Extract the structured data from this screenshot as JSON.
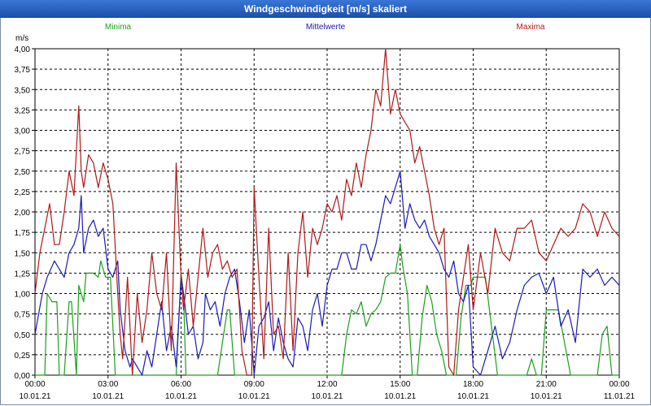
{
  "window": {
    "title": "Windgeschwindigkeit [m/s] skaliert"
  },
  "chart_data": {
    "type": "line",
    "title": "Windgeschwindigkeit [m/s] skaliert",
    "ylabel": "m/s",
    "xlabel": "",
    "ylim": [
      0,
      4
    ],
    "xlim_hours": [
      0,
      24
    ],
    "grid": true,
    "yticks": [
      "0,00",
      "0,25",
      "0,50",
      "0,75",
      "1,00",
      "1,25",
      "1,50",
      "1,75",
      "2,00",
      "2,25",
      "2,50",
      "2,75",
      "3,00",
      "3,25",
      "3,50",
      "3,75",
      "4,00"
    ],
    "xticks": [
      {
        "time": "00:00",
        "date": "10.01.21"
      },
      {
        "time": "03:00",
        "date": "10.01.21"
      },
      {
        "time": "06:00",
        "date": "10.01.21"
      },
      {
        "time": "09:00",
        "date": "10.01.21"
      },
      {
        "time": "12:00",
        "date": "10.01.21"
      },
      {
        "time": "15:00",
        "date": "10.01.21"
      },
      {
        "time": "18:00",
        "date": "10.01.21"
      },
      {
        "time": "21:00",
        "date": "10.01.21"
      },
      {
        "time": "00:00",
        "date": "11.01.21"
      }
    ],
    "series": [
      {
        "name": "Minima",
        "color": "#1aa01a",
        "x": [
          0,
          0.4,
          0.5,
          0.7,
          0.9,
          1.0,
          1.2,
          1.4,
          1.5,
          1.7,
          1.8,
          2.0,
          2.1,
          2.2,
          2.4,
          2.6,
          2.7,
          2.9,
          3.1,
          3.3,
          3.4,
          3.5,
          3.7,
          3.9,
          4.1,
          4.5,
          5.0,
          5.5,
          5.8,
          6.0,
          6.1,
          6.2,
          6.4,
          6.6,
          7.0,
          7.5,
          7.9,
          8.0,
          8.2,
          8.4,
          8.6,
          8.8,
          9.0,
          9.5,
          10.0,
          10.5,
          11.0,
          11.5,
          12.0,
          12.4,
          12.6,
          12.8,
          13.0,
          13.2,
          13.4,
          13.6,
          13.8,
          14.0,
          14.2,
          14.4,
          14.6,
          14.8,
          15.0,
          15.1,
          15.3,
          15.5,
          15.7,
          15.9,
          16.1,
          16.3,
          16.5,
          16.7,
          16.9,
          17.1,
          17.3,
          17.5,
          17.7,
          17.9,
          18.0,
          18.5,
          19.0,
          19.5,
          20.0,
          20.2,
          20.4,
          20.6,
          20.8,
          21.0,
          21.5,
          22.0,
          22.4,
          22.6,
          22.8,
          23.0,
          23.1,
          23.3,
          23.5,
          23.7,
          24.0
        ],
        "values": [
          0,
          0,
          1.0,
          0.9,
          0.9,
          0,
          0,
          0.9,
          0.9,
          0,
          1.1,
          0.9,
          1.25,
          1.25,
          1.25,
          1.2,
          1.4,
          1.2,
          1.2,
          0,
          0,
          0,
          0,
          0,
          0,
          0,
          0,
          0,
          0,
          1.25,
          1.0,
          0,
          0,
          0,
          0,
          0,
          0.8,
          0.8,
          0,
          0,
          0,
          0,
          0,
          0,
          0,
          0,
          0,
          0,
          0,
          0,
          0,
          0.5,
          0.8,
          0.75,
          0.9,
          0.6,
          0.75,
          0.8,
          0.9,
          1.2,
          1.25,
          1.25,
          1.6,
          1.35,
          1.0,
          0,
          0,
          0.7,
          1.1,
          0.9,
          0.5,
          0.3,
          0,
          0,
          0,
          0.7,
          1.1,
          1.1,
          1.2,
          1.2,
          0,
          0,
          0,
          0,
          0.2,
          0,
          0,
          0.8,
          0.8,
          0,
          0,
          0,
          0,
          0,
          0,
          0.5,
          0.6,
          0,
          0
        ]
      },
      {
        "name": "Mittelwerte",
        "color": "#1a1ab8",
        "x": [
          0,
          0.3,
          0.5,
          0.8,
          1.0,
          1.2,
          1.4,
          1.6,
          1.8,
          1.9,
          2.0,
          2.2,
          2.4,
          2.6,
          2.8,
          3.0,
          3.2,
          3.4,
          3.5,
          3.7,
          3.9,
          4.0,
          4.2,
          4.4,
          4.6,
          4.8,
          5.0,
          5.2,
          5.4,
          5.6,
          5.8,
          6.0,
          6.1,
          6.3,
          6.5,
          6.7,
          6.9,
          7.0,
          7.2,
          7.4,
          7.6,
          7.8,
          8.0,
          8.2,
          8.4,
          8.6,
          8.8,
          9.0,
          9.2,
          9.4,
          9.6,
          9.8,
          10.0,
          10.2,
          10.4,
          10.6,
          10.8,
          11.0,
          11.2,
          11.4,
          11.6,
          11.8,
          12.0,
          12.2,
          12.4,
          12.6,
          12.8,
          13.0,
          13.2,
          13.4,
          13.6,
          13.8,
          14.0,
          14.2,
          14.4,
          14.6,
          14.8,
          15.0,
          15.2,
          15.4,
          15.6,
          15.8,
          16.0,
          16.2,
          16.4,
          16.6,
          16.8,
          17.0,
          17.2,
          17.4,
          17.6,
          17.8,
          18.0,
          18.3,
          18.6,
          18.9,
          19.2,
          19.5,
          19.8,
          20.1,
          20.4,
          20.7,
          21.0,
          21.3,
          21.6,
          21.9,
          22.2,
          22.5,
          22.8,
          23.1,
          23.4,
          23.7,
          24.0
        ],
        "values": [
          0.5,
          1.0,
          1.2,
          1.4,
          1.3,
          1.2,
          1.5,
          1.6,
          1.8,
          2.2,
          1.5,
          1.8,
          1.9,
          1.7,
          1.8,
          1.3,
          1.2,
          1.4,
          0.8,
          0.3,
          0.1,
          0.2,
          0.1,
          0,
          0.3,
          0.1,
          0.5,
          0.9,
          0.3,
          0.6,
          0.1,
          1.2,
          1.0,
          0.5,
          0.6,
          0.2,
          0.4,
          1.0,
          0.8,
          0.9,
          0.6,
          1.0,
          1.2,
          1.3,
          0.9,
          0.4,
          0.8,
          0,
          0.6,
          0.7,
          0.9,
          0.3,
          0.7,
          0.4,
          0.2,
          0.1,
          0.7,
          0.6,
          0.3,
          0.8,
          1.0,
          0.6,
          1.1,
          1.3,
          1.3,
          1.5,
          1.5,
          1.3,
          1.3,
          1.6,
          1.6,
          1.4,
          1.6,
          1.9,
          2.2,
          2.1,
          2.3,
          2.5,
          1.8,
          2.1,
          1.9,
          1.8,
          1.9,
          1.7,
          1.6,
          1.5,
          1.3,
          1.2,
          1.4,
          1.0,
          0.9,
          1.1,
          0.1,
          0,
          0.3,
          0.6,
          0.2,
          0.4,
          0.8,
          1.1,
          1.2,
          1.25,
          1.0,
          1.2,
          0.6,
          0.8,
          0.4,
          1.3,
          1.2,
          1.3,
          1.1,
          1.2,
          1.1
        ]
      },
      {
        "name": "Maxima",
        "color": "#b01818",
        "x": [
          0,
          0.2,
          0.4,
          0.6,
          0.8,
          1.0,
          1.2,
          1.4,
          1.6,
          1.8,
          1.9,
          2.0,
          2.2,
          2.4,
          2.6,
          2.8,
          3.0,
          3.2,
          3.4,
          3.5,
          3.6,
          3.8,
          4.0,
          4.2,
          4.4,
          4.6,
          4.8,
          5.0,
          5.2,
          5.4,
          5.6,
          5.8,
          6.0,
          6.1,
          6.3,
          6.5,
          6.7,
          6.9,
          7.1,
          7.3,
          7.5,
          7.7,
          7.9,
          8.1,
          8.3,
          8.5,
          8.7,
          8.9,
          9.0,
          9.2,
          9.4,
          9.6,
          9.8,
          10.0,
          10.2,
          10.4,
          10.6,
          10.8,
          11.0,
          11.2,
          11.4,
          11.6,
          11.8,
          12.0,
          12.2,
          12.4,
          12.6,
          12.8,
          13.0,
          13.2,
          13.4,
          13.6,
          13.8,
          14.0,
          14.2,
          14.4,
          14.6,
          14.8,
          15.0,
          15.2,
          15.4,
          15.6,
          15.8,
          16.0,
          16.2,
          16.4,
          16.6,
          16.8,
          17.0,
          17.2,
          17.4,
          17.6,
          17.8,
          18.0,
          18.3,
          18.6,
          18.9,
          19.2,
          19.5,
          19.8,
          20.1,
          20.4,
          20.7,
          21.0,
          21.3,
          21.6,
          21.9,
          22.2,
          22.5,
          22.8,
          23.1,
          23.4,
          23.7,
          24.0
        ],
        "values": [
          1.0,
          1.5,
          1.8,
          2.1,
          1.6,
          1.6,
          2.0,
          2.5,
          2.2,
          3.3,
          2.5,
          2.3,
          2.7,
          2.6,
          2.3,
          2.6,
          2.4,
          2.1,
          1.0,
          0.5,
          0.2,
          1.2,
          0,
          1.0,
          0.4,
          0.8,
          1.5,
          1.0,
          0.8,
          1.5,
          0.3,
          2.6,
          1.2,
          0.8,
          1.3,
          0.6,
          1.2,
          1.8,
          1.2,
          1.5,
          1.6,
          1.3,
          1.4,
          1.2,
          1.3,
          0.3,
          0,
          0,
          2.3,
          1.2,
          0.2,
          1.8,
          0.5,
          0.6,
          0.2,
          1.5,
          0.3,
          1.5,
          2.0,
          1.2,
          1.8,
          1.6,
          1.8,
          2.1,
          2.0,
          2.2,
          1.9,
          2.4,
          2.2,
          2.6,
          2.3,
          2.7,
          3.0,
          3.5,
          3.3,
          4.0,
          3.2,
          3.5,
          3.2,
          3.1,
          3.0,
          2.6,
          2.8,
          2.5,
          2.2,
          1.8,
          1.6,
          1.8,
          0.1,
          0,
          0.8,
          1.2,
          1.6,
          0.8,
          1.5,
          1.0,
          1.8,
          1.5,
          1.4,
          1.8,
          1.8,
          1.9,
          1.5,
          1.4,
          1.6,
          1.8,
          1.7,
          1.8,
          2.1,
          2.0,
          1.7,
          2.0,
          1.8,
          1.7
        ]
      }
    ]
  }
}
